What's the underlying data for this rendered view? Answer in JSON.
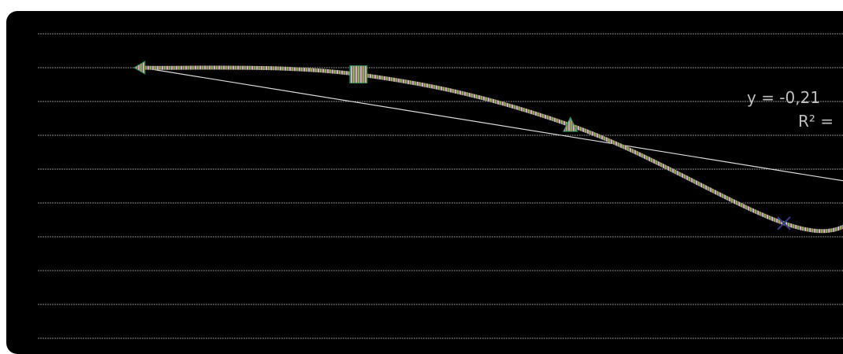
{
  "chart_data": {
    "type": "line",
    "title": "",
    "xlabel": "",
    "ylabel": "",
    "grid": true,
    "x": [
      1,
      2,
      3,
      4,
      5
    ],
    "ylim": [
      -8,
      1
    ],
    "series": [
      {
        "values": [
          0.0,
          -0.2,
          -1.7,
          -4.6,
          -4.6
        ],
        "color": "multicolor"
      }
    ],
    "markers": [
      "triangle-left",
      "square",
      "triangle",
      "x",
      "circle"
    ],
    "trendline": {
      "type": "linear",
      "start": [
        1,
        0.0
      ],
      "end": [
        5,
        -3.4
      ],
      "color": "#d9d9d9"
    },
    "annotations": {
      "equation": "y = -0,21",
      "r_squared": "R² ="
    }
  }
}
